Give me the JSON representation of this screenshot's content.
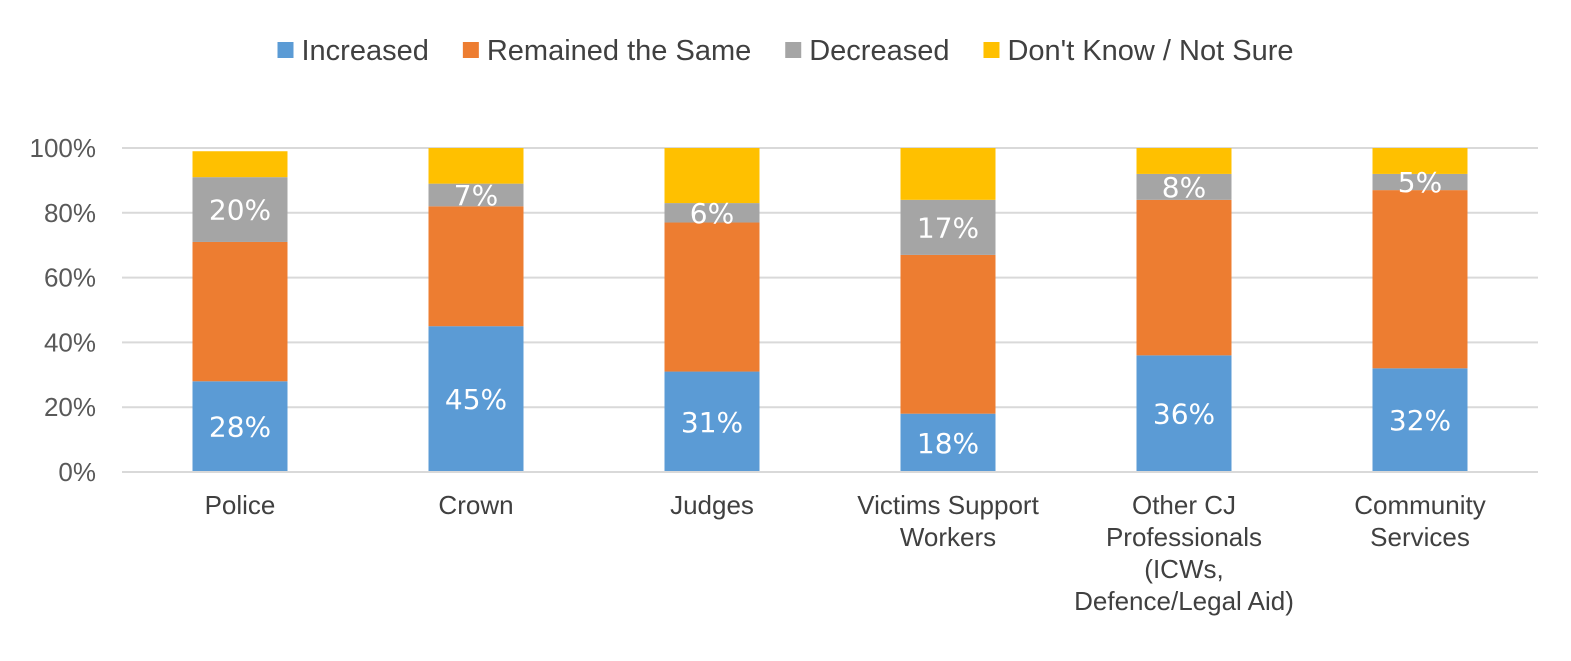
{
  "chart_data": {
    "type": "bar",
    "stacked": true,
    "categories": [
      [
        "Police"
      ],
      [
        "Crown"
      ],
      [
        "Judges"
      ],
      [
        "Victims Support",
        "Workers"
      ],
      [
        "Other CJ",
        "Professionals",
        "(ICWs,",
        "Defence/Legal Aid)"
      ],
      [
        "Community",
        "Services"
      ]
    ],
    "series": [
      {
        "name": "Increased",
        "color": "#5b9bd5",
        "values": [
          28,
          45,
          31,
          18,
          36,
          32
        ],
        "labels": [
          "28%",
          "45%",
          "31%",
          "18%",
          "36%",
          "32%"
        ]
      },
      {
        "name": "Remained the Same",
        "color": "#ed7d31",
        "values": [
          43,
          37,
          46,
          49,
          48,
          55
        ],
        "labels": [
          "",
          "",
          "",
          "",
          "",
          ""
        ]
      },
      {
        "name": "Decreased",
        "color": "#a5a5a5",
        "values": [
          20,
          7,
          6,
          17,
          8,
          5
        ],
        "labels": [
          "20%",
          "7%",
          "6%",
          "17%",
          "8%",
          "5%"
        ]
      },
      {
        "name": "Don't Know / Not Sure",
        "color": "#ffc000",
        "values": [
          8,
          11,
          17,
          16,
          8,
          8
        ],
        "labels": [
          "",
          "",
          "",
          "",
          "",
          ""
        ]
      }
    ],
    "ylim": [
      0,
      100
    ],
    "yticks": [
      "0%",
      "20%",
      "40%",
      "60%",
      "80%",
      "100%"
    ],
    "grid": true,
    "legend": "top-center"
  }
}
